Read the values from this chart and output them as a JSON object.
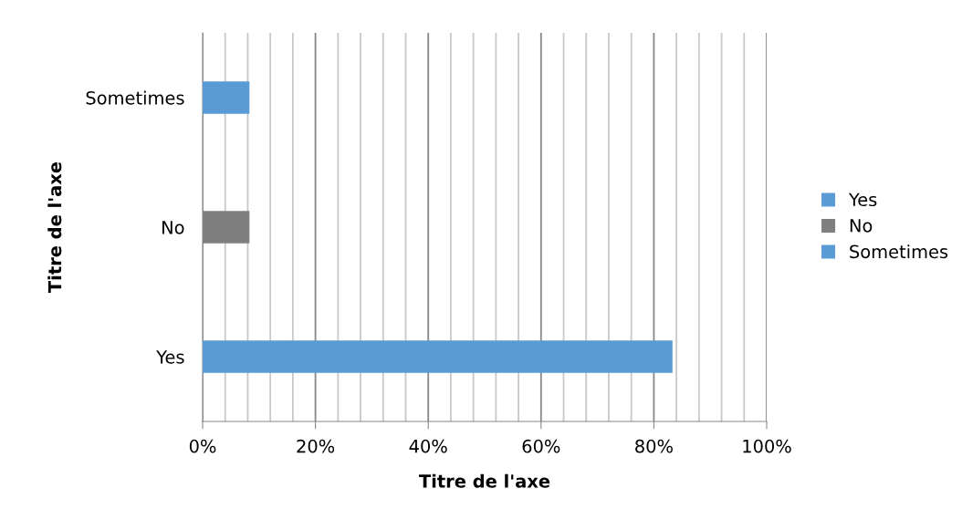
{
  "chart_data": {
    "type": "bar",
    "orientation": "horizontal",
    "xlabel": "Titre de l'axe",
    "ylabel": "Titre de l'axe",
    "categories": [
      "Sometimes",
      "No",
      "Yes"
    ],
    "series": [
      {
        "name": "Yes",
        "color": "#5b9bd5",
        "values": [
          null,
          null,
          83.3
        ]
      },
      {
        "name": "No",
        "color": "#7f7f7f",
        "values": [
          null,
          8.3,
          null
        ]
      },
      {
        "name": "Sometimes",
        "color": "#5b9bd5",
        "values": [
          8.3,
          null,
          null
        ]
      }
    ],
    "xlim": [
      0,
      100
    ],
    "xticks": [
      {
        "value": 0,
        "label": "0%"
      },
      {
        "value": 4,
        "label": null
      },
      {
        "value": 8,
        "label": null
      },
      {
        "value": 12,
        "label": null
      },
      {
        "value": 16,
        "label": null
      },
      {
        "value": 20,
        "label": "20%"
      },
      {
        "value": 24,
        "label": null
      },
      {
        "value": 28,
        "label": null
      },
      {
        "value": 32,
        "label": null
      },
      {
        "value": 36,
        "label": null
      },
      {
        "value": 40,
        "label": "40%"
      },
      {
        "value": 44,
        "label": null
      },
      {
        "value": 48,
        "label": null
      },
      {
        "value": 52,
        "label": null
      },
      {
        "value": 56,
        "label": null
      },
      {
        "value": 60,
        "label": "60%"
      },
      {
        "value": 64,
        "label": null
      },
      {
        "value": 68,
        "label": null
      },
      {
        "value": 72,
        "label": null
      },
      {
        "value": 76,
        "label": null
      },
      {
        "value": 80,
        "label": "80%"
      },
      {
        "value": 84,
        "label": null
      },
      {
        "value": 88,
        "label": null
      },
      {
        "value": 92,
        "label": null
      },
      {
        "value": 96,
        "label": null
      },
      {
        "value": 100,
        "label": "100%"
      }
    ],
    "grid": "x",
    "legend": "right"
  }
}
